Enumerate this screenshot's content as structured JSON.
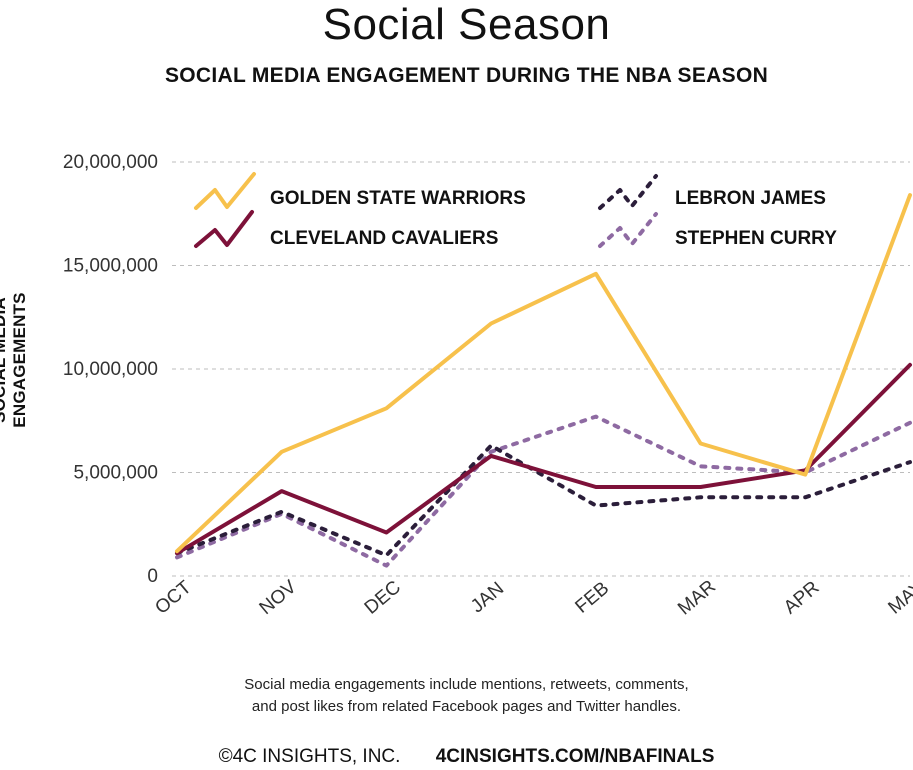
{
  "title": "Social Season",
  "subtitle": "SOCIAL MEDIA ENGAGEMENT DURING THE NBA SEASON",
  "note_line1": "Social media engagements include mentions, retweets, comments,",
  "note_line2": "and post likes from related Facebook pages and Twitter handles.",
  "footer": {
    "copyright": "©4C INSIGHTS, INC.",
    "url": "4CINSIGHTS.COM/NBAFINALS"
  },
  "chart_data": {
    "type": "line",
    "ylabel": "SOCIAL MEDIA ENGAGEMENTS",
    "xlabel": "",
    "categories": [
      "OCT",
      "NOV",
      "DEC",
      "JAN",
      "FEB",
      "MAR",
      "APR",
      "MAY"
    ],
    "yticks": [
      {
        "value": 0,
        "label": "0"
      },
      {
        "value": 5000000,
        "label": "5,000,000"
      },
      {
        "value": 10000000,
        "label": "10,000,000"
      },
      {
        "value": 15000000,
        "label": "15,000,000"
      },
      {
        "value": 20000000,
        "label": "20,000,000"
      }
    ],
    "ylim": [
      0,
      20000000
    ],
    "grid": "horizontal dashed",
    "legend_position": "top",
    "series": [
      {
        "name": "GOLDEN STATE WARRIORS",
        "color": "#F7C14C",
        "style": "solid",
        "values": [
          1200000,
          6000000,
          8100000,
          12200000,
          14600000,
          6400000,
          4900000,
          18400000
        ]
      },
      {
        "name": "CLEVELAND CAVALIERS",
        "color": "#7D1139",
        "style": "solid",
        "values": [
          1100000,
          4100000,
          2100000,
          5800000,
          4300000,
          4300000,
          5100000,
          10200000
        ]
      },
      {
        "name": "LEBRON JAMES",
        "color": "#2B1E3A",
        "style": "dotted",
        "values": [
          1100000,
          3100000,
          1000000,
          6300000,
          3400000,
          3800000,
          3800000,
          5500000
        ]
      },
      {
        "name": "STEPHEN CURRY",
        "color": "#8E6AA2",
        "style": "dotted",
        "values": [
          900000,
          3000000,
          500000,
          6000000,
          7700000,
          5300000,
          5000000,
          7400000
        ]
      }
    ]
  }
}
